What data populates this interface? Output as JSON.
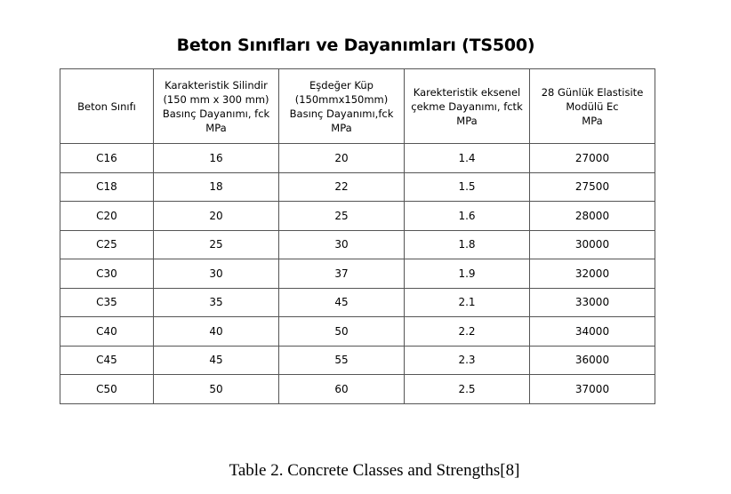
{
  "title": "Beton Sınıfları ve Dayanımları (TS500)",
  "table": {
    "headers": [
      [
        "Beton Sınıfı"
      ],
      [
        "Karakteristik Silindir",
        "(150 mm x 300 mm)",
        "Basınç Dayanımı, fck",
        "MPa"
      ],
      [
        "Eşdeğer Küp",
        "(150mmx150mm)",
        "Basınç Dayanımı,fck",
        "MPa"
      ],
      [
        "Karekteristik eksenel",
        "çekme Dayanımı, fctk",
        "MPa"
      ],
      [
        "28 Günlük Elastisite",
        "Modülü Ec",
        "MPa"
      ]
    ],
    "rows": [
      [
        "C16",
        "16",
        "20",
        "1.4",
        "27000"
      ],
      [
        "C18",
        "18",
        "22",
        "1.5",
        "27500"
      ],
      [
        "C20",
        "20",
        "25",
        "1.6",
        "28000"
      ],
      [
        "C25",
        "25",
        "30",
        "1.8",
        "30000"
      ],
      [
        "C30",
        "30",
        "37",
        "1.9",
        "32000"
      ],
      [
        "C35",
        "35",
        "45",
        "2.1",
        "33000"
      ],
      [
        "C40",
        "40",
        "50",
        "2.2",
        "34000"
      ],
      [
        "C45",
        "45",
        "55",
        "2.3",
        "36000"
      ],
      [
        "C50",
        "50",
        "60",
        "2.5",
        "37000"
      ]
    ]
  },
  "caption": "Table 2. Concrete Classes and Strengths[8]"
}
